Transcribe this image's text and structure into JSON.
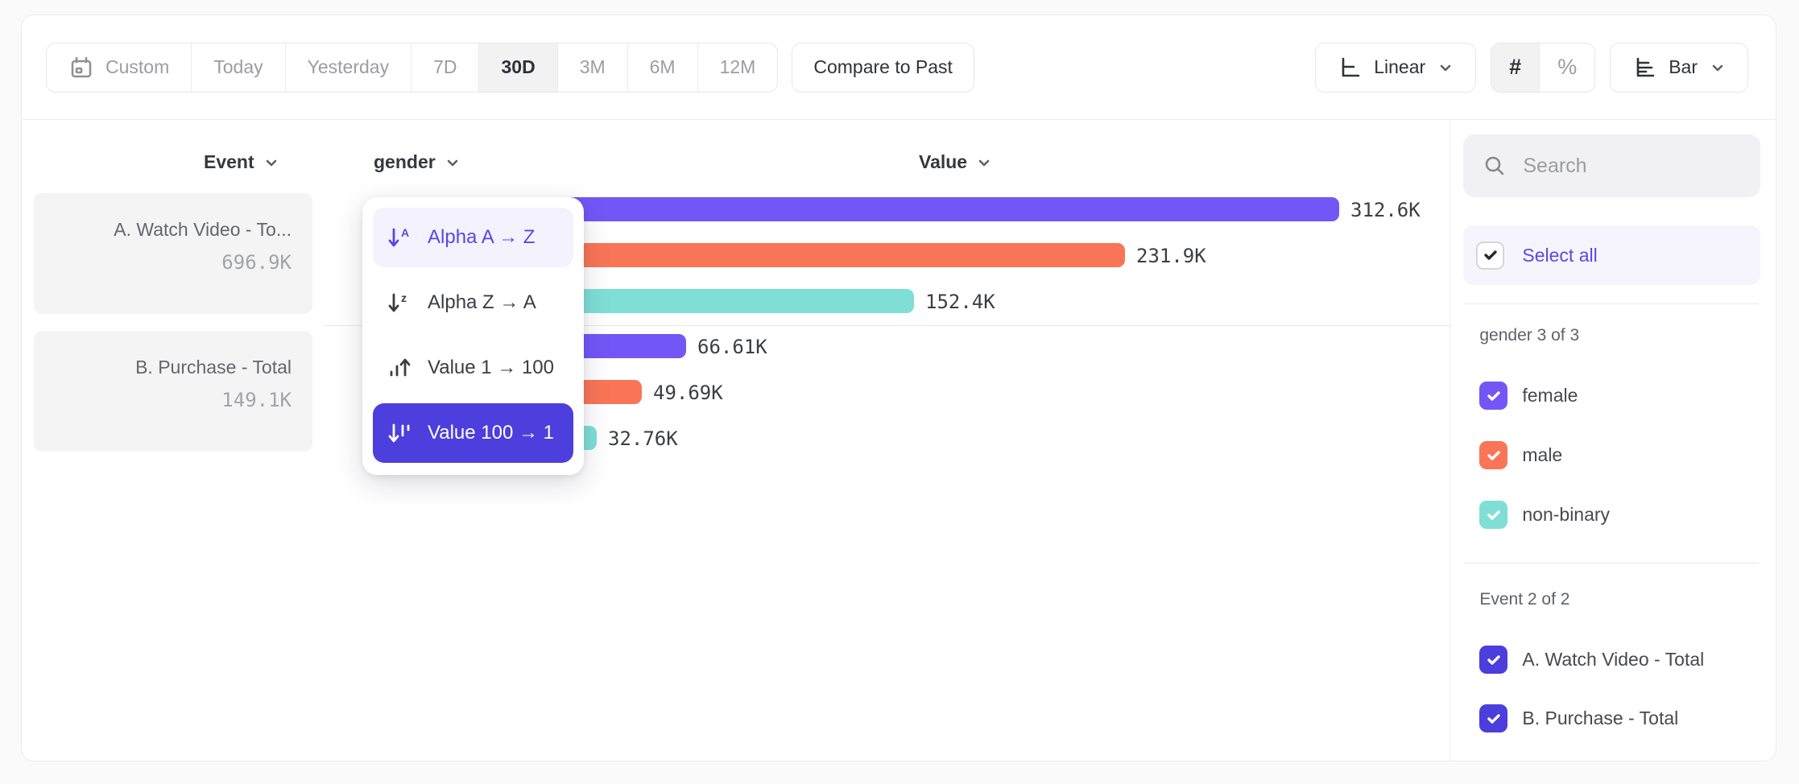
{
  "toolbar": {
    "date_ranges": [
      "Custom",
      "Today",
      "Yesterday",
      "7D",
      "30D",
      "3M",
      "6M",
      "12M"
    ],
    "selected_range": "30D",
    "compare_label": "Compare to Past",
    "scale_label": "Linear",
    "number_symbol": "#",
    "percent_symbol": "%",
    "value_format_selected": "number",
    "chart_type_label": "Bar"
  },
  "chart_header": {
    "event": "Event",
    "breakdown": "gender",
    "value": "Value"
  },
  "events": [
    {
      "name": "A. Watch Video - To...",
      "total": "696.9K"
    },
    {
      "name": "B. Purchase - Total",
      "total": "149.1K"
    }
  ],
  "sort_menu": {
    "items": [
      {
        "label": "Alpha A → Z",
        "state": "hovered"
      },
      {
        "label": "Alpha Z → A",
        "state": "normal"
      },
      {
        "label": "Value 1 → 100",
        "state": "normal"
      },
      {
        "label": "Value 100 → 1",
        "state": "active"
      }
    ]
  },
  "sidebar": {
    "search_placeholder": "Search",
    "select_all_label": "Select all",
    "sections": [
      {
        "label": "gender 3 of 3",
        "options": [
          {
            "label": "female",
            "color": "#7456f7"
          },
          {
            "label": "male",
            "color": "#fa7557"
          },
          {
            "label": "non-binary",
            "color": "#7fdfd6"
          }
        ]
      },
      {
        "label": "Event 2 of 2",
        "options": [
          {
            "label": "A. Watch Video - Total",
            "color": "#4b3edd"
          },
          {
            "label": "B. Purchase - Total",
            "color": "#4b3edd"
          }
        ]
      }
    ]
  },
  "chart_data": {
    "type": "bar",
    "orientation": "horizontal",
    "value_axis": "Value",
    "breakdown_property": "gender",
    "categories": [
      "female",
      "male",
      "non-binary"
    ],
    "colors": {
      "female": "#7456f7",
      "male": "#fa7557",
      "non-binary": "#7fdfd6"
    },
    "sort": "Value 100 → 1",
    "series": [
      {
        "group": "A. Watch Video - Total",
        "group_total_k": 696.9,
        "values_k": [
          312.6,
          231.9,
          152.4
        ],
        "labels": [
          "312.6K",
          "231.9K",
          "152.4K"
        ]
      },
      {
        "group": "B. Purchase - Total",
        "group_total_k": 149.1,
        "values_k": [
          66.61,
          49.69,
          32.76
        ],
        "labels": [
          "66.61K",
          "49.69K",
          "32.76K"
        ]
      }
    ]
  }
}
